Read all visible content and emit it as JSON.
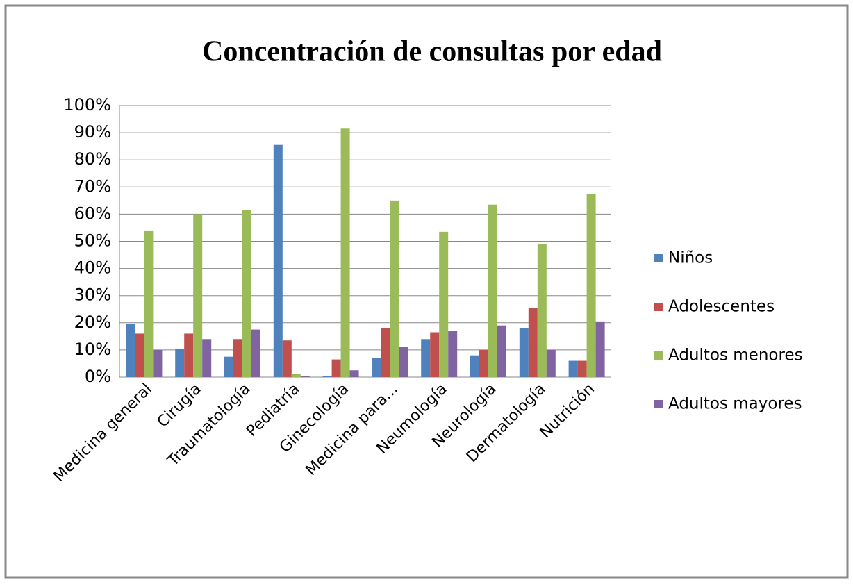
{
  "chart_data": {
    "type": "bar",
    "title": "Concentración de consultas por edad",
    "categories": [
      "Medicina general",
      "Cirugía",
      "Traumatología",
      "Pediatría",
      "Ginecología",
      "Medicina para...",
      "Neumología",
      "Neurología",
      "Dermatología",
      "Nutrición"
    ],
    "series": [
      {
        "name": "Niños",
        "color": "#4f81bd",
        "values": [
          19.5,
          10.5,
          7.5,
          85.5,
          0.5,
          7,
          14,
          8,
          18,
          6
        ]
      },
      {
        "name": "Adolescentes",
        "color": "#c0504d",
        "values": [
          16,
          16,
          14,
          13.5,
          6.5,
          18,
          16.5,
          10,
          25.5,
          6
        ]
      },
      {
        "name": "Adultos menores",
        "color": "#9bbb59",
        "values": [
          54,
          60,
          61.5,
          1.2,
          91.5,
          65,
          53.5,
          63.5,
          49,
          67.5
        ]
      },
      {
        "name": "Adultos mayores",
        "color": "#8064a2",
        "values": [
          10,
          14,
          17.5,
          0.5,
          2.5,
          11,
          17,
          19,
          10,
          20.5
        ]
      }
    ],
    "ylim": [
      0,
      100
    ],
    "yticks": [
      {
        "value": 0,
        "label": "0%"
      },
      {
        "value": 10,
        "label": "10%"
      },
      {
        "value": 20,
        "label": "20%"
      },
      {
        "value": 30,
        "label": "30%"
      },
      {
        "value": 40,
        "label": "40%"
      },
      {
        "value": 50,
        "label": "50%"
      },
      {
        "value": 60,
        "label": "60%"
      },
      {
        "value": 70,
        "label": "70%"
      },
      {
        "value": 80,
        "label": "80%"
      },
      {
        "value": 90,
        "label": "90%"
      },
      {
        "value": 100,
        "label": "100%"
      }
    ],
    "grid": true,
    "legend": "right"
  }
}
